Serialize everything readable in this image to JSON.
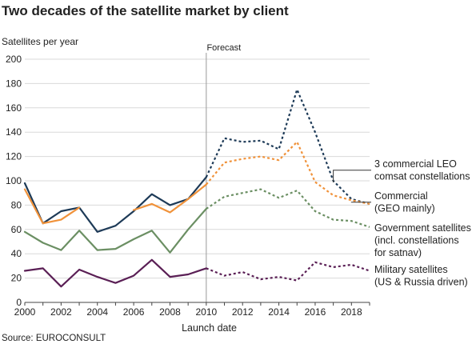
{
  "title": "Two decades of the satellite market by client",
  "source": "Source: EUROCONSULT",
  "chart_data": {
    "type": "line",
    "title": "Two decades of the satellite market by client",
    "ylabel": "Satellites per year",
    "xlabel": "Launch date",
    "forecast_label": "Forecast",
    "forecast_start": 2010,
    "xlim": [
      2000,
      2019
    ],
    "ylim": [
      0,
      200
    ],
    "x_ticks": [
      "2000",
      "2002",
      "2004",
      "2006",
      "2008",
      "2010",
      "2012",
      "2014",
      "2016",
      "2018"
    ],
    "y_ticks": [
      "0",
      "20",
      "40",
      "60",
      "80",
      "100",
      "120",
      "140",
      "160",
      "180",
      "200"
    ],
    "grid": true,
    "x": [
      2000,
      2001,
      2002,
      2003,
      2004,
      2005,
      2006,
      2007,
      2008,
      2009,
      2010,
      2011,
      2012,
      2013,
      2014,
      2015,
      2016,
      2017,
      2018,
      2019
    ],
    "series": [
      {
        "key": "leo",
        "label_lines": [
          "3 commercial LEO",
          "comsat constellations"
        ],
        "color": "#1d3a57",
        "values": [
          98,
          65,
          75,
          78,
          58,
          63,
          75,
          89,
          80,
          85,
          103,
          135,
          132,
          133,
          126,
          175,
          140,
          100,
          85,
          81
        ]
      },
      {
        "key": "commercial",
        "label_lines": [
          "Commercial",
          "(GEO mainly)"
        ],
        "color": "#f0923a",
        "values": [
          93,
          65,
          68,
          78,
          null,
          null,
          76,
          81,
          74,
          85,
          97,
          115,
          118,
          120,
          117,
          132,
          99,
          88,
          84,
          81
        ]
      },
      {
        "key": "government",
        "label_lines": [
          "Government satellites",
          "(incl. constellations",
          "for satnav)"
        ],
        "color": "#6b8f63",
        "values": [
          58,
          49,
          43,
          59,
          43,
          44,
          52,
          59,
          41,
          60,
          77,
          87,
          90,
          93,
          86,
          92,
          75,
          68,
          67,
          62
        ]
      },
      {
        "key": "military",
        "label_lines": [
          "Military satellites",
          "(US & Russia driven)"
        ],
        "color": "#5a1f55",
        "values": [
          26,
          28,
          13,
          27,
          21,
          16,
          22,
          35,
          21,
          23,
          28,
          22,
          25,
          19,
          21,
          18,
          33,
          29,
          31,
          26
        ]
      }
    ]
  }
}
